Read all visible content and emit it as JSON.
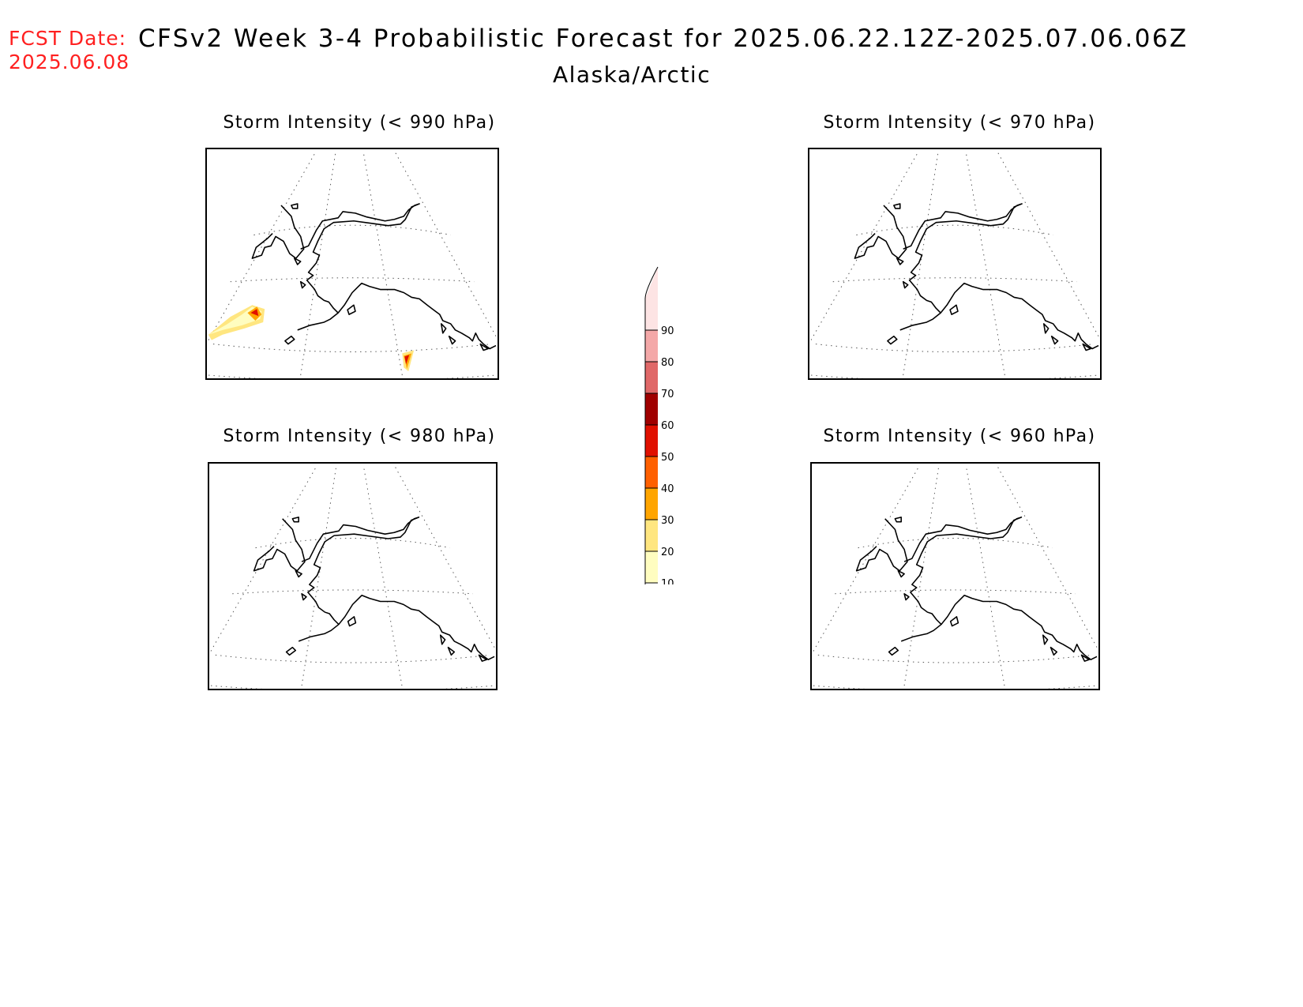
{
  "header": {
    "fcst_label": "FCST Date:",
    "fcst_date": "2025.06.08",
    "title": "CFSv2 Week 3-4 Probabilistic Forecast for 2025.06.22.12Z-2025.07.06.06Z",
    "subtitle": "Alaska/Arctic"
  },
  "panels": [
    {
      "id": "p990",
      "title": "Storm Intensity (< 990 hPa)",
      "has_shading": true
    },
    {
      "id": "p970",
      "title": "Storm Intensity (< 970 hPa)",
      "has_shading": false
    },
    {
      "id": "p980",
      "title": "Storm Intensity (< 980 hPa)",
      "has_shading": false
    },
    {
      "id": "p960",
      "title": "Storm Intensity (< 960 hPa)",
      "has_shading": false
    }
  ],
  "colorbar": {
    "levels": [
      "10",
      "20",
      "30",
      "40",
      "50",
      "60",
      "70",
      "80",
      "90"
    ],
    "colors": [
      "#fffdc0",
      "#ffe680",
      "#ffa500",
      "#ff6000",
      "#e01000",
      "#a00000",
      "#e06868",
      "#f4a8a8",
      "#fde4e4"
    ]
  }
}
